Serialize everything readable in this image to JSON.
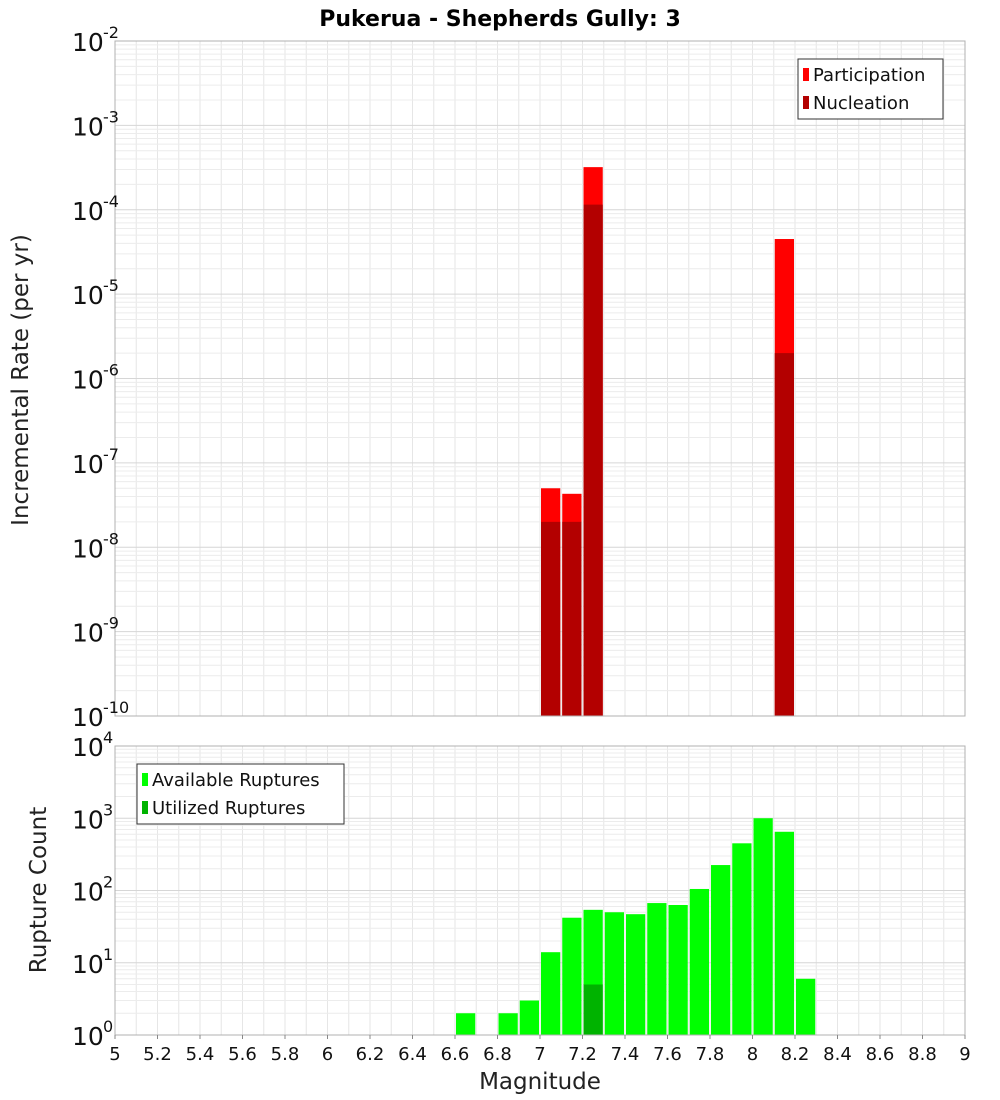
{
  "chart_data": [
    {
      "type": "bar",
      "title": "Pukerua - Shepherds Gully: 3",
      "xlabel": "Magnitude",
      "ylabel": "Incremental Rate (per yr)",
      "yscale": "log",
      "xlim": [
        5,
        9
      ],
      "ylim_exponents": [
        -10,
        -2
      ],
      "bin_width": 0.1,
      "legend_position": "top-right",
      "grid": true,
      "series": [
        {
          "name": "Participation",
          "color": "#ff0000",
          "points": [
            {
              "x": 7.05,
              "y": 5e-08
            },
            {
              "x": 7.15,
              "y": 4.3e-08
            },
            {
              "x": 7.25,
              "y": 0.00032
            },
            {
              "x": 8.15,
              "y": 4.5e-05
            }
          ]
        },
        {
          "name": "Nucleation",
          "color": "#b30000",
          "points": [
            {
              "x": 7.05,
              "y": 2e-08
            },
            {
              "x": 7.15,
              "y": 2e-08
            },
            {
              "x": 7.25,
              "y": 0.000115
            },
            {
              "x": 8.15,
              "y": 2e-06
            }
          ]
        }
      ]
    },
    {
      "type": "bar",
      "title": "",
      "xlabel": "Magnitude",
      "ylabel": "Rupture Count",
      "yscale": "log",
      "xlim": [
        5,
        9
      ],
      "ylim_exponents": [
        0,
        4
      ],
      "bin_width": 0.1,
      "legend_position": "top-left",
      "grid": true,
      "x_ticks": [
        "5",
        "5.2",
        "5.4",
        "5.6",
        "5.8",
        "6",
        "6.2",
        "6.4",
        "6.6",
        "6.8",
        "7",
        "7.2",
        "7.4",
        "7.6",
        "7.8",
        "8",
        "8.2",
        "8.4",
        "8.6",
        "8.8",
        "9"
      ],
      "series": [
        {
          "name": "Available Ruptures",
          "color": "#00ff00",
          "points": [
            {
              "x": 6.65,
              "y": 2
            },
            {
              "x": 6.85,
              "y": 2
            },
            {
              "x": 6.95,
              "y": 3
            },
            {
              "x": 7.05,
              "y": 14
            },
            {
              "x": 7.15,
              "y": 42
            },
            {
              "x": 7.25,
              "y": 54
            },
            {
              "x": 7.35,
              "y": 50
            },
            {
              "x": 7.45,
              "y": 47
            },
            {
              "x": 7.55,
              "y": 67
            },
            {
              "x": 7.65,
              "y": 63
            },
            {
              "x": 7.75,
              "y": 105
            },
            {
              "x": 7.85,
              "y": 225
            },
            {
              "x": 7.95,
              "y": 450
            },
            {
              "x": 8.05,
              "y": 1000
            },
            {
              "x": 8.15,
              "y": 650
            },
            {
              "x": 8.25,
              "y": 6
            }
          ]
        },
        {
          "name": "Utilized Ruptures",
          "color": "#00b300",
          "points": [
            {
              "x": 7.05,
              "y": 1
            },
            {
              "x": 7.15,
              "y": 1
            },
            {
              "x": 7.25,
              "y": 5
            },
            {
              "x": 8.15,
              "y": 1
            }
          ]
        }
      ]
    }
  ]
}
